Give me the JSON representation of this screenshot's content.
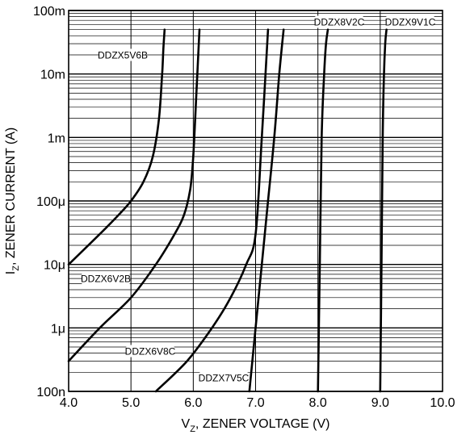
{
  "chart_data": {
    "type": "line",
    "title": "",
    "xlabel": {
      "main": "V",
      "sub": "Z",
      "rest": ", ZENER VOLTAGE (V)"
    },
    "ylabel": {
      "main": "I",
      "sub": "Z",
      "rest": ", ZENER CURRENT (A)"
    },
    "x_scale": "linear",
    "y_scale": "log",
    "xlim": [
      4.0,
      10.0
    ],
    "ylim": [
      1e-07,
      0.1
    ],
    "x_ticks": [
      {
        "value": 4.0,
        "label": "4.0"
      },
      {
        "value": 5.0,
        "label": "5.0"
      },
      {
        "value": 6.0,
        "label": "6.0"
      },
      {
        "value": 7.0,
        "label": "7.0"
      },
      {
        "value": 8.0,
        "label": "8.0"
      },
      {
        "value": 9.0,
        "label": "9.0"
      },
      {
        "value": 10.0,
        "label": "10.0"
      }
    ],
    "y_ticks": [
      {
        "value": 1e-07,
        "label": "100n"
      },
      {
        "value": 1e-06,
        "label": "1μ"
      },
      {
        "value": 1e-05,
        "label": "10μ"
      },
      {
        "value": 0.0001,
        "label": "100μ"
      },
      {
        "value": 0.001,
        "label": "1m"
      },
      {
        "value": 0.01,
        "label": "10m"
      },
      {
        "value": 0.1,
        "label": "100m"
      }
    ],
    "grid": true,
    "series": [
      {
        "name": "DDZX5V6B",
        "color": "#000000",
        "x": [
          4.0,
          4.5,
          4.8,
          5.0,
          5.2,
          5.35,
          5.45,
          5.5,
          5.52,
          5.54
        ],
        "y": [
          1e-05,
          3e-05,
          6e-05,
          0.0001,
          0.0002,
          0.0005,
          0.002,
          0.01,
          0.025,
          0.05
        ]
      },
      {
        "name": "DDZX6V2B",
        "color": "#000000",
        "x": [
          4.0,
          4.5,
          5.0,
          5.4,
          5.7,
          5.85,
          5.95,
          6.0,
          6.05,
          6.1
        ],
        "y": [
          3e-07,
          1e-06,
          3e-06,
          1e-05,
          3e-05,
          6e-05,
          0.00015,
          0.0005,
          0.005,
          0.05
        ]
      },
      {
        "name": "DDZX6V8C",
        "color": "#000000",
        "x": [
          5.4,
          5.9,
          6.3,
          6.6,
          6.85,
          7.0,
          7.1,
          7.2
        ],
        "y": [
          1e-07,
          3e-07,
          1e-06,
          3e-06,
          1e-05,
          3e-05,
          0.001,
          0.05
        ]
      },
      {
        "name": "DDZX7V5C",
        "color": "#000000",
        "x": [
          6.9,
          7.0,
          7.1,
          7.2,
          7.3,
          7.38,
          7.45
        ],
        "y": [
          1e-07,
          1e-06,
          1e-05,
          0.0001,
          0.001,
          0.01,
          0.05
        ]
      },
      {
        "name": "DDZX8V2C",
        "color": "#000000",
        "x": [
          8.0,
          8.03,
          8.06,
          8.1,
          8.13,
          8.16
        ],
        "y": [
          1e-07,
          1e-05,
          0.001,
          0.01,
          0.03,
          0.05
        ]
      },
      {
        "name": "DDZX9V1C",
        "color": "#000000",
        "x": [
          9.0,
          9.02,
          9.04,
          9.06,
          9.08,
          9.1
        ],
        "y": [
          1e-07,
          1e-05,
          0.001,
          0.01,
          0.03,
          0.05
        ]
      }
    ]
  }
}
